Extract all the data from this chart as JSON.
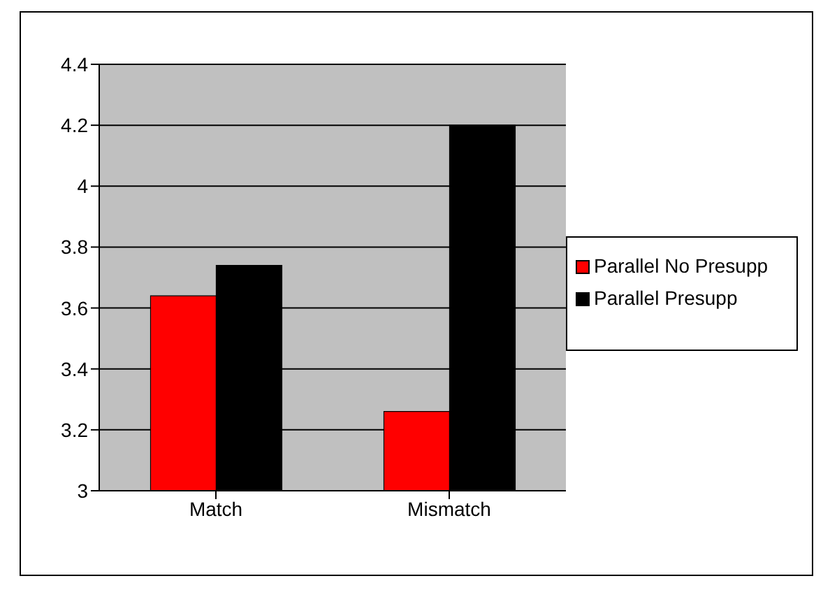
{
  "chart_data": {
    "type": "bar",
    "categories": [
      "Match",
      "Mismatch"
    ],
    "series": [
      {
        "name": "Parallel No Presupp",
        "color": "#ff0000",
        "values": [
          3.64,
          3.26
        ]
      },
      {
        "name": "Parallel Presupp",
        "color": "#000000",
        "values": [
          3.74,
          4.2
        ]
      }
    ],
    "ylim": [
      3,
      4.4
    ],
    "yticks": [
      3,
      3.2,
      3.4,
      3.6,
      3.8,
      4,
      4.2,
      4.4
    ],
    "grid": "y",
    "legend": "right"
  }
}
